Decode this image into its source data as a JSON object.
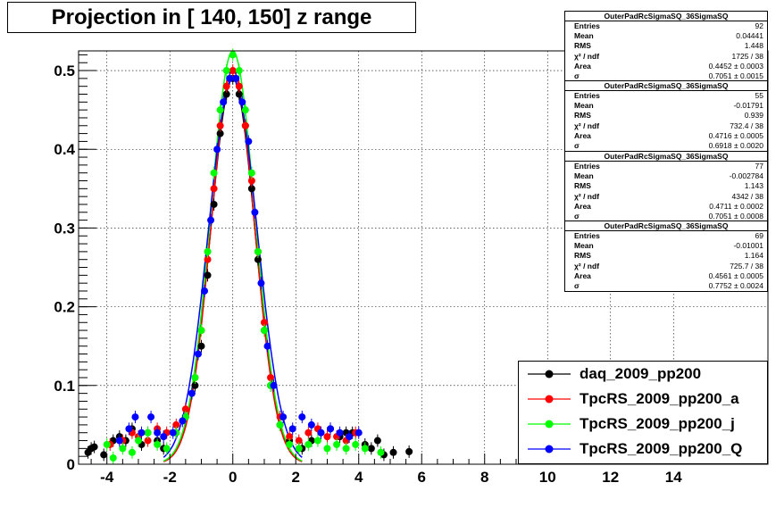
{
  "title": "Projection in [ 140, 150] z range",
  "stats_boxes": [
    {
      "name": "OuterPadRcSigmaSQ_36SigmaSQ",
      "rows": [
        {
          "k": "Entries",
          "v": "92"
        },
        {
          "k": "Mean",
          "v": "0.04441"
        },
        {
          "k": "RMS",
          "v": "1.448"
        },
        {
          "k": "χ² / ndf",
          "v": "1725 / 38"
        },
        {
          "k": "Area",
          "v": "0.4452 ± 0.0003"
        },
        {
          "k": "σ",
          "v": "0.7051 ± 0.0015"
        }
      ]
    },
    {
      "name": "OuterPadRcSigmaSQ_36SigmaSQ",
      "rows": [
        {
          "k": "Entries",
          "v": "55"
        },
        {
          "k": "Mean",
          "v": "-0.01791"
        },
        {
          "k": "RMS",
          "v": "0.939"
        },
        {
          "k": "χ² / ndf",
          "v": "732.4 / 38"
        },
        {
          "k": "Area",
          "v": "0.4716 ± 0.0005"
        },
        {
          "k": "σ",
          "v": "0.6918 ± 0.0020"
        }
      ]
    },
    {
      "name": "OuterPadRcSigmaSQ_36SigmaSQ",
      "rows": [
        {
          "k": "Entries",
          "v": "77"
        },
        {
          "k": "Mean",
          "v": "-0.002784"
        },
        {
          "k": "RMS",
          "v": "1.143"
        },
        {
          "k": "χ² / ndf",
          "v": "4342 / 38"
        },
        {
          "k": "Area",
          "v": "0.4711 ± 0.0002"
        },
        {
          "k": "σ",
          "v": "0.7051 ± 0.0008"
        }
      ]
    },
    {
      "name": "OuterPadRcSigmaSQ_36SigmaSQ",
      "rows": [
        {
          "k": "Entries",
          "v": "69"
        },
        {
          "k": "Mean",
          "v": "-0.01001"
        },
        {
          "k": "RMS",
          "v": "1.164"
        },
        {
          "k": "χ² / ndf",
          "v": "725.7 / 38"
        },
        {
          "k": "Area",
          "v": "0.4561 ± 0.0005"
        },
        {
          "k": "σ",
          "v": "0.7752 ± 0.0024"
        }
      ]
    }
  ],
  "chart_data": {
    "type": "scatter",
    "xlim": [
      -4.9,
      17.0
    ],
    "ylim": [
      0,
      0.525
    ],
    "grid": true,
    "x_ticks": [
      -4,
      -2,
      0,
      2,
      4,
      6,
      8,
      10,
      12,
      14
    ],
    "x_tick_labels": [
      "-4",
      "-2",
      "0",
      "2",
      "4",
      "6",
      "8",
      "10",
      "12",
      "14"
    ],
    "y_ticks": [
      0,
      0.1,
      0.2,
      0.3,
      0.4,
      0.5
    ],
    "y_tick_labels": [
      "0",
      "0.1",
      "0.2",
      "0.3",
      "0.4",
      "0.5"
    ],
    "legend_position": "bottom-right",
    "series": [
      {
        "name": "daq_2009_pp200",
        "color": "#000000",
        "sigma": 0.7051,
        "peak": 0.49,
        "points": [
          [
            -4.6,
            0.015
          ],
          [
            -4.5,
            0.02
          ],
          [
            -4.4,
            0.022
          ],
          [
            -4.1,
            0.012
          ],
          [
            -3.8,
            0.03
          ],
          [
            -3.6,
            0.035
          ],
          [
            -3.4,
            0.03
          ],
          [
            -3.2,
            0.045
          ],
          [
            -2.9,
            0.025
          ],
          [
            -2.7,
            0.04
          ],
          [
            -2.4,
            0.03
          ],
          [
            -2.2,
            0.02
          ],
          [
            -1.8,
            0.04
          ],
          [
            -1.5,
            0.06
          ],
          [
            -1.2,
            0.1
          ],
          [
            -1.0,
            0.15
          ],
          [
            -0.8,
            0.24
          ],
          [
            -0.6,
            0.33
          ],
          [
            -0.4,
            0.42
          ],
          [
            -0.2,
            0.47
          ],
          [
            0.0,
            0.49
          ],
          [
            0.2,
            0.47
          ],
          [
            0.4,
            0.43
          ],
          [
            0.6,
            0.35
          ],
          [
            0.8,
            0.26
          ],
          [
            1.0,
            0.17
          ],
          [
            1.2,
            0.1
          ],
          [
            1.5,
            0.05
          ],
          [
            1.8,
            0.03
          ],
          [
            2.2,
            0.02
          ],
          [
            2.5,
            0.03
          ],
          [
            2.8,
            0.04
          ],
          [
            3.1,
            0.045
          ],
          [
            3.4,
            0.035
          ],
          [
            3.6,
            0.04
          ],
          [
            3.8,
            0.04
          ],
          [
            4.2,
            0.025
          ],
          [
            4.4,
            0.02
          ],
          [
            4.6,
            0.03
          ],
          [
            4.8,
            0.012
          ],
          [
            5.1,
            0.015
          ],
          [
            5.6,
            0.016
          ]
        ]
      },
      {
        "name": "TpcRS_2009_pp200_a",
        "color": "#ff0000",
        "sigma": 0.6918,
        "peak": 0.5,
        "points": [
          [
            -3.9,
            0.025
          ],
          [
            -3.5,
            0.03
          ],
          [
            -3.2,
            0.04
          ],
          [
            -3.0,
            0.035
          ],
          [
            -2.7,
            0.03
          ],
          [
            -2.4,
            0.045
          ],
          [
            -2.1,
            0.04
          ],
          [
            -1.8,
            0.05
          ],
          [
            -1.5,
            0.07
          ],
          [
            -1.2,
            0.11
          ],
          [
            -1.0,
            0.17
          ],
          [
            -0.8,
            0.26
          ],
          [
            -0.6,
            0.35
          ],
          [
            -0.4,
            0.43
          ],
          [
            -0.2,
            0.48
          ],
          [
            0.0,
            0.5
          ],
          [
            0.2,
            0.48
          ],
          [
            0.4,
            0.43
          ],
          [
            0.6,
            0.36
          ],
          [
            0.8,
            0.27
          ],
          [
            1.0,
            0.18
          ],
          [
            1.2,
            0.11
          ],
          [
            1.5,
            0.06
          ],
          [
            1.8,
            0.035
          ],
          [
            2.1,
            0.03
          ],
          [
            2.4,
            0.04
          ],
          [
            2.7,
            0.045
          ],
          [
            3.0,
            0.035
          ],
          [
            3.3,
            0.035
          ],
          [
            3.6,
            0.03
          ],
          [
            3.9,
            0.04
          ]
        ]
      },
      {
        "name": "TpcRS_2009_pp200_j",
        "color": "#00ff00",
        "sigma": 0.7051,
        "peak": 0.525,
        "points": [
          [
            -4.0,
            0.025
          ],
          [
            -3.8,
            0.008
          ],
          [
            -3.5,
            0.02
          ],
          [
            -3.2,
            0.015
          ],
          [
            -3.0,
            0.03
          ],
          [
            -2.7,
            0.04
          ],
          [
            -2.4,
            0.025
          ],
          [
            -2.1,
            0.02
          ],
          [
            -1.8,
            0.04
          ],
          [
            -1.5,
            0.06
          ],
          [
            -1.2,
            0.11
          ],
          [
            -1.0,
            0.17
          ],
          [
            -0.8,
            0.27
          ],
          [
            -0.6,
            0.37
          ],
          [
            -0.4,
            0.45
          ],
          [
            -0.2,
            0.5
          ],
          [
            0.0,
            0.52
          ],
          [
            0.2,
            0.5
          ],
          [
            0.4,
            0.45
          ],
          [
            0.6,
            0.37
          ],
          [
            0.8,
            0.27
          ],
          [
            1.0,
            0.17
          ],
          [
            1.2,
            0.1
          ],
          [
            1.5,
            0.05
          ],
          [
            1.8,
            0.025
          ],
          [
            2.1,
            0.02
          ],
          [
            2.4,
            0.025
          ],
          [
            2.7,
            0.03
          ],
          [
            3.0,
            0.02
          ],
          [
            3.3,
            0.025
          ],
          [
            3.6,
            0.02
          ],
          [
            3.9,
            0.025
          ],
          [
            4.2,
            0.02
          ],
          [
            4.7,
            0.015
          ]
        ]
      },
      {
        "name": "TpcRS_2009_pp200_Q",
        "color": "#0000ff",
        "sigma": 0.7752,
        "peak": 0.49,
        "points": [
          [
            -3.6,
            0.03
          ],
          [
            -3.3,
            0.045
          ],
          [
            -3.1,
            0.06
          ],
          [
            -2.9,
            0.04
          ],
          [
            -2.6,
            0.06
          ],
          [
            -2.4,
            0.04
          ],
          [
            -2.2,
            0.035
          ],
          [
            -1.9,
            0.04
          ],
          [
            -1.6,
            0.055
          ],
          [
            -1.3,
            0.09
          ],
          [
            -1.1,
            0.14
          ],
          [
            -0.9,
            0.22
          ],
          [
            -0.7,
            0.31
          ],
          [
            -0.5,
            0.4
          ],
          [
            -0.3,
            0.46
          ],
          [
            -0.1,
            0.49
          ],
          [
            0.1,
            0.49
          ],
          [
            0.3,
            0.46
          ],
          [
            0.5,
            0.41
          ],
          [
            0.7,
            0.32
          ],
          [
            0.9,
            0.23
          ],
          [
            1.1,
            0.15
          ],
          [
            1.3,
            0.1
          ],
          [
            1.6,
            0.06
          ],
          [
            1.9,
            0.045
          ],
          [
            2.2,
            0.06
          ],
          [
            2.5,
            0.05
          ],
          [
            2.8,
            0.04
          ],
          [
            3.1,
            0.045
          ],
          [
            3.4,
            0.04
          ],
          [
            3.7,
            0.035
          ],
          [
            4.0,
            0.04
          ]
        ]
      }
    ]
  }
}
